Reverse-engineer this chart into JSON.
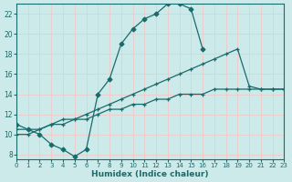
{
  "xlabel": "Humidex (Indice chaleur)",
  "bg_color": "#cceaea",
  "grid_color": "#f0c8c8",
  "line_color": "#1a6b6b",
  "xlim": [
    0,
    23
  ],
  "ylim": [
    7.5,
    23
  ],
  "xticks": [
    0,
    1,
    2,
    3,
    4,
    5,
    6,
    7,
    8,
    9,
    10,
    11,
    12,
    13,
    14,
    15,
    16,
    17,
    18,
    19,
    20,
    21,
    22,
    23
  ],
  "yticks": [
    8,
    10,
    12,
    14,
    16,
    18,
    20,
    22
  ],
  "lines": [
    {
      "x": [
        0,
        1,
        2,
        3,
        4,
        5,
        6,
        7,
        8,
        9,
        10,
        11,
        12,
        13,
        14,
        15,
        16
      ],
      "y": [
        11,
        10.5,
        10,
        9,
        8.5,
        7.8,
        8.5,
        14.0,
        15.5,
        19.0,
        20.5,
        21.5,
        22.0,
        23.0,
        23.0,
        22.5,
        18.5
      ],
      "marker": "D",
      "ms": 2.5
    },
    {
      "x": [
        0,
        1,
        2,
        3,
        4,
        5,
        6,
        7,
        8,
        9,
        10,
        11,
        12,
        13,
        14,
        15,
        16,
        17,
        18,
        19,
        20,
        21,
        22,
        23
      ],
      "y": [
        10.5,
        10.5,
        10.5,
        11.0,
        11.5,
        11.5,
        12.0,
        12.5,
        13.0,
        13.5,
        14.0,
        14.5,
        15.0,
        15.5,
        16.0,
        16.5,
        17.0,
        17.5,
        18.0,
        18.5,
        14.8,
        14.5,
        14.5,
        14.5
      ],
      "marker": "+",
      "ms": 3.5
    },
    {
      "x": [
        0,
        1,
        2,
        3,
        4,
        5,
        6,
        7,
        8,
        9,
        10,
        11,
        12,
        13,
        14,
        15,
        16,
        17,
        18,
        19,
        20,
        21,
        22,
        23
      ],
      "y": [
        10.0,
        10.0,
        10.5,
        11.0,
        11.0,
        11.5,
        11.5,
        12.0,
        12.5,
        12.5,
        13.0,
        13.0,
        13.5,
        13.5,
        14.0,
        14.0,
        14.0,
        14.5,
        14.5,
        14.5,
        14.5,
        14.5,
        14.5,
        14.5
      ],
      "marker": "+",
      "ms": 3.0
    }
  ]
}
